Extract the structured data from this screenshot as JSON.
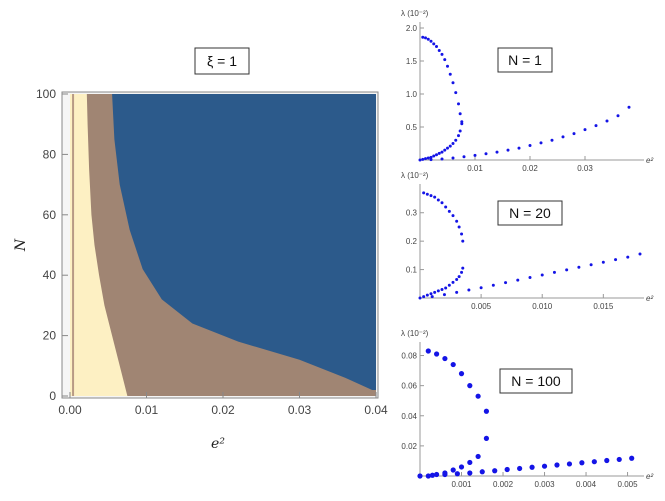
{
  "chart_data": [
    {
      "type": "heatmap",
      "title": "ξ = 1",
      "xlabel": "e²",
      "ylabel": "N",
      "xlim": [
        0.0,
        0.04
      ],
      "ylim": [
        0,
        100
      ],
      "xticks": [
        "0.00",
        "0.01",
        "0.02",
        "0.03",
        "0.04"
      ],
      "yticks": [
        "0",
        "20",
        "40",
        "60",
        "80",
        "100"
      ],
      "regions": [
        {
          "color": "#fdf0c3",
          "boundary_e2": [
            [
              0,
              0.0003
            ],
            [
              100,
              0.0003
            ]
          ]
        },
        {
          "color": "#a08573",
          "boundary_e2": [
            [
              0,
              0.0005
            ],
            [
              20,
              0.0015
            ],
            [
              40,
              0.0028
            ],
            [
              60,
              0.0028
            ],
            [
              80,
              0.0022
            ],
            [
              100,
              0.0022
            ]
          ]
        },
        {
          "color": "#2c5a8b",
          "boundary_e2": [
            [
              0,
              0.0075
            ],
            [
              20,
              0.0045
            ],
            [
              40,
              0.0035
            ],
            [
              60,
              0.003
            ],
            [
              80,
              0.0028
            ],
            [
              100,
              0.0028
            ]
          ]
        }
      ],
      "blue_boundary": [
        [
          0.0395,
          2
        ],
        [
          0.036,
          6
        ],
        [
          0.03,
          12
        ],
        [
          0.022,
          18
        ],
        [
          0.016,
          24
        ],
        [
          0.012,
          32
        ],
        [
          0.0095,
          42
        ],
        [
          0.0078,
          55
        ],
        [
          0.0065,
          70
        ],
        [
          0.0058,
          85
        ],
        [
          0.0055,
          100
        ]
      ],
      "brown_boundary": [
        [
          0.0075,
          0
        ],
        [
          0.0065,
          10
        ],
        [
          0.0055,
          20
        ],
        [
          0.0045,
          30
        ],
        [
          0.0038,
          40
        ],
        [
          0.0032,
          50
        ],
        [
          0.0028,
          60
        ],
        [
          0.0025,
          75
        ],
        [
          0.0023,
          90
        ],
        [
          0.0022,
          100
        ]
      ],
      "yellow_boundary": [
        [
          0.0005,
          0
        ],
        [
          0.0005,
          100
        ]
      ]
    },
    {
      "type": "scatter",
      "title": "N = 1",
      "ylabel": "λ (10⁻²)",
      "xlabel": "e²",
      "xlim": [
        0,
        0.04
      ],
      "ylim": [
        0,
        2.0
      ],
      "xticks": [
        "0.01",
        "0.02",
        "0.03"
      ],
      "yticks": [
        "0.5",
        "1.0",
        "1.5",
        "2.0"
      ],
      "series": [
        {
          "color": "#1414e6",
          "x": [
            0.0005,
            0.001,
            0.0015,
            0.002,
            0.0025,
            0.003,
            0.0035,
            0.004,
            0.0045,
            0.005,
            0.0055,
            0.006,
            0.0065,
            0.007,
            0.0073,
            0.0076
          ],
          "y": [
            1.86,
            1.85,
            1.83,
            1.8,
            1.76,
            1.72,
            1.66,
            1.6,
            1.52,
            1.42,
            1.3,
            1.17,
            1.02,
            0.85,
            0.7,
            0.58
          ]
        },
        {
          "color": "#1414e6",
          "x": [
            0.0005,
            0.001,
            0.0015,
            0.002,
            0.0025,
            0.003,
            0.0035,
            0.004,
            0.0045,
            0.005,
            0.0055,
            0.006,
            0.0065,
            0.007,
            0.0073,
            0.0076
          ],
          "y": [
            0.01,
            0.02,
            0.03,
            0.04,
            0.06,
            0.08,
            0.1,
            0.12,
            0.15,
            0.18,
            0.21,
            0.25,
            0.3,
            0.37,
            0.44,
            0.55
          ]
        },
        {
          "color": "#1414e6",
          "x": [
            0.0,
            0.002,
            0.004,
            0.006,
            0.008,
            0.01,
            0.012,
            0.014,
            0.016,
            0.018,
            0.02,
            0.022,
            0.024,
            0.026,
            0.028,
            0.03,
            0.032,
            0.034,
            0.036,
            0.038
          ],
          "y": [
            0.0,
            0.005,
            0.015,
            0.03,
            0.05,
            0.07,
            0.095,
            0.12,
            0.15,
            0.18,
            0.22,
            0.26,
            0.3,
            0.35,
            0.4,
            0.46,
            0.52,
            0.59,
            0.67,
            0.8
          ]
        }
      ]
    },
    {
      "type": "scatter",
      "title": "N = 20",
      "ylabel": "λ (10⁻²)",
      "xlabel": "e²",
      "xlim": [
        0,
        0.018
      ],
      "ylim": [
        0,
        0.38
      ],
      "xticks": [
        "0.005",
        "0.010",
        "0.015"
      ],
      "yticks": [
        "0.1",
        "0.2",
        "0.3"
      ],
      "series": [
        {
          "color": "#1414e6",
          "x": [
            0.0003,
            0.0006,
            0.0009,
            0.0012,
            0.0015,
            0.0018,
            0.0021,
            0.0024,
            0.0027,
            0.003,
            0.0032,
            0.0034,
            0.0035
          ],
          "y": [
            0.37,
            0.365,
            0.36,
            0.355,
            0.345,
            0.335,
            0.32,
            0.305,
            0.29,
            0.27,
            0.25,
            0.225,
            0.2
          ]
        },
        {
          "color": "#1414e6",
          "x": [
            0.0003,
            0.0006,
            0.0009,
            0.0012,
            0.0015,
            0.0018,
            0.0021,
            0.0024,
            0.0027,
            0.003,
            0.0032,
            0.0034,
            0.0035
          ],
          "y": [
            0.005,
            0.01,
            0.015,
            0.02,
            0.025,
            0.03,
            0.035,
            0.045,
            0.055,
            0.065,
            0.075,
            0.09,
            0.105
          ]
        },
        {
          "color": "#1414e6",
          "x": [
            0.0,
            0.001,
            0.002,
            0.003,
            0.004,
            0.005,
            0.006,
            0.007,
            0.008,
            0.009,
            0.01,
            0.011,
            0.012,
            0.013,
            0.014,
            0.015,
            0.016,
            0.017,
            0.018
          ],
          "y": [
            0.0,
            0.005,
            0.012,
            0.02,
            0.028,
            0.036,
            0.045,
            0.054,
            0.063,
            0.072,
            0.081,
            0.09,
            0.099,
            0.108,
            0.117,
            0.126,
            0.135,
            0.144,
            0.155
          ]
        }
      ]
    },
    {
      "type": "scatter",
      "title": "N = 100",
      "ylabel": "λ (10⁻²)",
      "xlabel": "e²",
      "xlim": [
        0,
        0.0053
      ],
      "ylim": [
        0,
        0.085
      ],
      "xticks": [
        "0.001",
        "0.002",
        "0.003",
        "0.004",
        "0.005"
      ],
      "yticks": [
        "0.02",
        "0.04",
        "0.06",
        "0.08"
      ],
      "series": [
        {
          "color": "#1414e6",
          "x": [
            0.0002,
            0.0004,
            0.0006,
            0.0008,
            0.001,
            0.0012,
            0.0014,
            0.0016
          ],
          "y": [
            0.083,
            0.081,
            0.078,
            0.074,
            0.068,
            0.06,
            0.053,
            0.043
          ]
        },
        {
          "color": "#1414e6",
          "x": [
            0.0002,
            0.0004,
            0.0006,
            0.0008,
            0.001,
            0.0012,
            0.0014,
            0.0016
          ],
          "y": [
            0.0,
            0.001,
            0.002,
            0.004,
            0.006,
            0.009,
            0.013,
            0.025
          ]
        },
        {
          "color": "#1414e6",
          "x": [
            0.0,
            0.0003,
            0.0006,
            0.0009,
            0.0012,
            0.0015,
            0.0018,
            0.0021,
            0.0024,
            0.0027,
            0.003,
            0.0033,
            0.0036,
            0.0039,
            0.0042,
            0.0045,
            0.0048,
            0.0051
          ],
          "y": [
            0.0,
            0.0005,
            0.001,
            0.0015,
            0.002,
            0.0028,
            0.0035,
            0.0043,
            0.005,
            0.0058,
            0.0065,
            0.0073,
            0.008,
            0.0088,
            0.0095,
            0.0103,
            0.011,
            0.0118
          ]
        }
      ]
    }
  ]
}
